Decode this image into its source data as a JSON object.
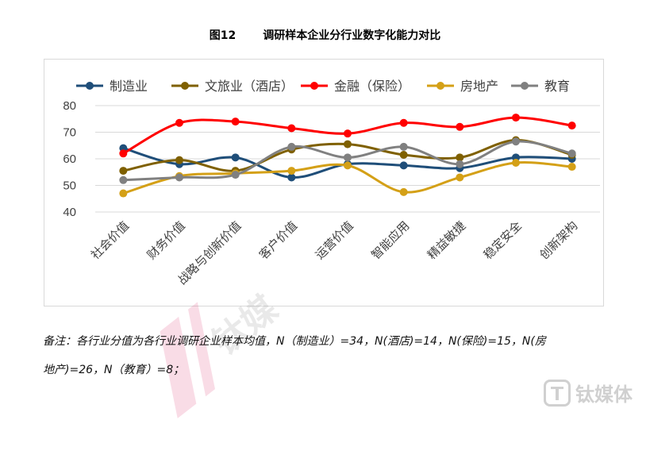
{
  "figure": {
    "number": "图12",
    "title": "调研样本企业分行业数字化能力对比"
  },
  "note": {
    "line1": "备注：各行业分值为各行业调研企业样本均值，N（制造业）=34，N(酒店)=14，N(保险)=15，N(房",
    "line2": "地产)=26，N（教育）=8；"
  },
  "watermark": {
    "logo_text": "钛媒体",
    "diagonal_text": "钛媒"
  },
  "chart_data": {
    "type": "line",
    "title": "",
    "xlabel": "",
    "ylabel": "",
    "ylim": [
      40,
      80
    ],
    "yticks": [
      40,
      50,
      60,
      70,
      80
    ],
    "grid": "horizontal",
    "legend_position": "top",
    "categories": [
      "社会价值",
      "财务价值",
      "战略与创新价值",
      "客户价值",
      "运营价值",
      "智能应用",
      "精益敏捷",
      "稳定安全",
      "创新架构"
    ],
    "series": [
      {
        "name": "制造业",
        "color": "#1f4e79",
        "values": [
          64,
          58,
          60.5,
          53,
          58,
          57.5,
          56.5,
          60.5,
          60
        ]
      },
      {
        "name": "文旅业（酒店）",
        "color": "#7f6000",
        "values": [
          55.5,
          59.5,
          55.5,
          63.5,
          65.5,
          61.5,
          60.5,
          67,
          61.5
        ]
      },
      {
        "name": "金融（保险）",
        "color": "#ff0000",
        "values": [
          62,
          73.5,
          74,
          71.5,
          69.5,
          73.5,
          72,
          75.5,
          72.5
        ]
      },
      {
        "name": "房地产",
        "color": "#d4a017",
        "values": [
          47,
          53.5,
          54.5,
          55.5,
          57.5,
          47.5,
          53,
          58.5,
          57
        ]
      },
      {
        "name": "教育",
        "color": "#808080",
        "values": [
          52,
          53,
          54,
          64.5,
          60.5,
          64.5,
          58,
          66.5,
          62
        ]
      }
    ]
  }
}
